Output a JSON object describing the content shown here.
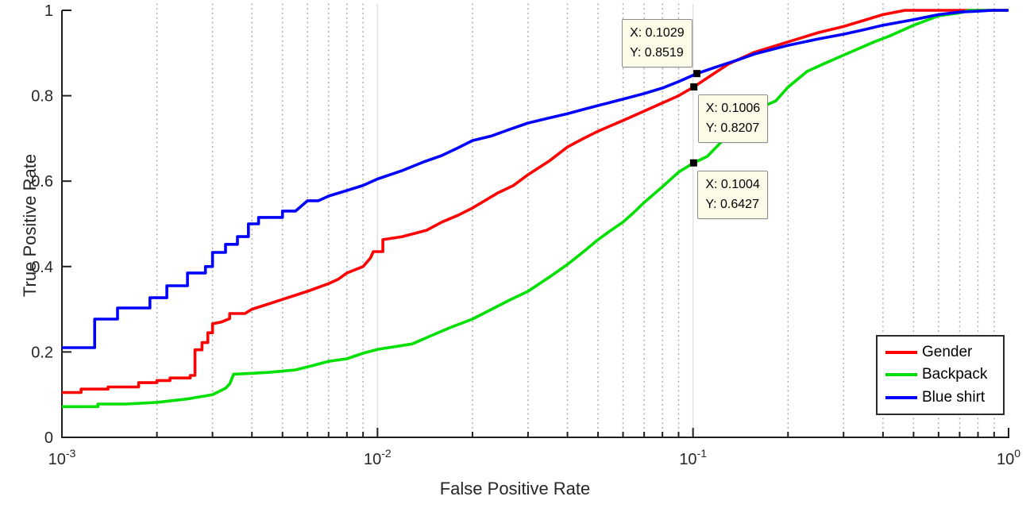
{
  "chart_data": {
    "type": "line",
    "title": "",
    "xlabel": "False Positive Rate",
    "ylabel": "True Positive Rate",
    "x_scale": "log",
    "xlim": [
      0.001,
      1
    ],
    "ylim": [
      0,
      1
    ],
    "grid": {
      "x_minor_dotted": true,
      "x_major_solid": true,
      "y_grid": false
    },
    "axis_color": "#1f1f1f",
    "tick_label_color": "#262626",
    "minor_grid_color": "#ababab",
    "major_grid_color": "#e3e3e3",
    "x_ticks": [
      {
        "value": 0.001,
        "base": "10",
        "exp": "-3"
      },
      {
        "value": 0.01,
        "base": "10",
        "exp": "-2"
      },
      {
        "value": 0.1,
        "base": "10",
        "exp": "-1"
      },
      {
        "value": 1,
        "base": "10",
        "exp": "0"
      }
    ],
    "y_ticks": [
      {
        "value": 0,
        "label": "0"
      },
      {
        "value": 0.2,
        "label": "0.2"
      },
      {
        "value": 0.4,
        "label": "0.4"
      },
      {
        "value": 0.6,
        "label": "0.6"
      },
      {
        "value": 0.8,
        "label": "0.8"
      },
      {
        "value": 1,
        "label": "1"
      }
    ],
    "legend_position": "south-east",
    "series": [
      {
        "name": "Gender",
        "color": "#ff0000",
        "points": [
          [
            0.001,
            0.105
          ],
          [
            0.00115,
            0.105
          ],
          [
            0.00115,
            0.113
          ],
          [
            0.0014,
            0.113
          ],
          [
            0.0014,
            0.118
          ],
          [
            0.00175,
            0.118
          ],
          [
            0.00175,
            0.128
          ],
          [
            0.002,
            0.128
          ],
          [
            0.002,
            0.133
          ],
          [
            0.0022,
            0.133
          ],
          [
            0.0022,
            0.139
          ],
          [
            0.00255,
            0.139
          ],
          [
            0.00255,
            0.145
          ],
          [
            0.00264,
            0.145
          ],
          [
            0.00264,
            0.205
          ],
          [
            0.00278,
            0.205
          ],
          [
            0.00278,
            0.222
          ],
          [
            0.0029,
            0.222
          ],
          [
            0.0029,
            0.245
          ],
          [
            0.003,
            0.245
          ],
          [
            0.003,
            0.266
          ],
          [
            0.0032,
            0.27
          ],
          [
            0.0034,
            0.278
          ],
          [
            0.0034,
            0.29
          ],
          [
            0.0038,
            0.29
          ],
          [
            0.004,
            0.3
          ],
          [
            0.0045,
            0.312
          ],
          [
            0.005,
            0.323
          ],
          [
            0.006,
            0.342
          ],
          [
            0.007,
            0.36
          ],
          [
            0.0075,
            0.37
          ],
          [
            0.008,
            0.385
          ],
          [
            0.009,
            0.4
          ],
          [
            0.0095,
            0.42
          ],
          [
            0.0097,
            0.435
          ],
          [
            0.0104,
            0.435
          ],
          [
            0.0104,
            0.463
          ],
          [
            0.012,
            0.47
          ],
          [
            0.0143,
            0.485
          ],
          [
            0.016,
            0.504
          ],
          [
            0.018,
            0.52
          ],
          [
            0.02,
            0.537
          ],
          [
            0.024,
            0.572
          ],
          [
            0.027,
            0.59
          ],
          [
            0.03,
            0.615
          ],
          [
            0.035,
            0.647
          ],
          [
            0.04,
            0.68
          ],
          [
            0.045,
            0.7
          ],
          [
            0.05,
            0.717
          ],
          [
            0.06,
            0.742
          ],
          [
            0.07,
            0.764
          ],
          [
            0.08,
            0.783
          ],
          [
            0.09,
            0.8
          ],
          [
            0.1006,
            0.8207
          ],
          [
            0.117,
            0.853
          ],
          [
            0.13,
            0.875
          ],
          [
            0.157,
            0.902
          ],
          [
            0.2,
            0.926
          ],
          [
            0.25,
            0.948
          ],
          [
            0.3,
            0.962
          ],
          [
            0.35,
            0.977
          ],
          [
            0.4,
            0.99
          ],
          [
            0.47,
            1.0
          ],
          [
            1.0,
            1.0
          ]
        ]
      },
      {
        "name": "Backpack",
        "color": "#00e000",
        "points": [
          [
            0.001,
            0.072
          ],
          [
            0.0013,
            0.072
          ],
          [
            0.0013,
            0.078
          ],
          [
            0.0016,
            0.078
          ],
          [
            0.002,
            0.082
          ],
          [
            0.0025,
            0.09
          ],
          [
            0.003,
            0.1
          ],
          [
            0.0033,
            0.115
          ],
          [
            0.0034,
            0.125
          ],
          [
            0.0035,
            0.148
          ],
          [
            0.004,
            0.15
          ],
          [
            0.0045,
            0.152
          ],
          [
            0.005,
            0.155
          ],
          [
            0.0055,
            0.158
          ],
          [
            0.006,
            0.165
          ],
          [
            0.007,
            0.178
          ],
          [
            0.008,
            0.184
          ],
          [
            0.009,
            0.197
          ],
          [
            0.01,
            0.206
          ],
          [
            0.0115,
            0.213
          ],
          [
            0.0129,
            0.219
          ],
          [
            0.015,
            0.24
          ],
          [
            0.017,
            0.257
          ],
          [
            0.02,
            0.277
          ],
          [
            0.023,
            0.3
          ],
          [
            0.026,
            0.32
          ],
          [
            0.03,
            0.342
          ],
          [
            0.035,
            0.375
          ],
          [
            0.04,
            0.405
          ],
          [
            0.045,
            0.435
          ],
          [
            0.05,
            0.463
          ],
          [
            0.055,
            0.485
          ],
          [
            0.06,
            0.504
          ],
          [
            0.065,
            0.527
          ],
          [
            0.07,
            0.55
          ],
          [
            0.08,
            0.587
          ],
          [
            0.09,
            0.621
          ],
          [
            0.1004,
            0.6427
          ],
          [
            0.111,
            0.658
          ],
          [
            0.13,
            0.71
          ],
          [
            0.15,
            0.76
          ],
          [
            0.183,
            0.788
          ],
          [
            0.2,
            0.82
          ],
          [
            0.23,
            0.857
          ],
          [
            0.26,
            0.875
          ],
          [
            0.3,
            0.895
          ],
          [
            0.375,
            0.926
          ],
          [
            0.42,
            0.94
          ],
          [
            0.5,
            0.965
          ],
          [
            0.6,
            0.987
          ],
          [
            0.7,
            0.994
          ],
          [
            0.75,
            1.0
          ],
          [
            1.0,
            1.0
          ]
        ]
      },
      {
        "name": "Blue shirt",
        "color": "#0000ff",
        "points": [
          [
            0.001,
            0.21
          ],
          [
            0.00127,
            0.21
          ],
          [
            0.00127,
            0.277
          ],
          [
            0.0015,
            0.277
          ],
          [
            0.0015,
            0.303
          ],
          [
            0.0019,
            0.303
          ],
          [
            0.0019,
            0.327
          ],
          [
            0.00215,
            0.327
          ],
          [
            0.00215,
            0.355
          ],
          [
            0.0025,
            0.355
          ],
          [
            0.0025,
            0.385
          ],
          [
            0.00285,
            0.385
          ],
          [
            0.00285,
            0.4
          ],
          [
            0.003,
            0.4
          ],
          [
            0.003,
            0.433
          ],
          [
            0.0033,
            0.433
          ],
          [
            0.0033,
            0.452
          ],
          [
            0.0036,
            0.452
          ],
          [
            0.0036,
            0.47
          ],
          [
            0.0039,
            0.47
          ],
          [
            0.0039,
            0.5
          ],
          [
            0.0042,
            0.5
          ],
          [
            0.0042,
            0.515
          ],
          [
            0.005,
            0.515
          ],
          [
            0.005,
            0.53
          ],
          [
            0.0055,
            0.53
          ],
          [
            0.006,
            0.554
          ],
          [
            0.0065,
            0.554
          ],
          [
            0.007,
            0.565
          ],
          [
            0.008,
            0.578
          ],
          [
            0.009,
            0.59
          ],
          [
            0.01,
            0.605
          ],
          [
            0.012,
            0.625
          ],
          [
            0.014,
            0.645
          ],
          [
            0.016,
            0.66
          ],
          [
            0.018,
            0.678
          ],
          [
            0.02,
            0.695
          ],
          [
            0.023,
            0.706
          ],
          [
            0.026,
            0.72
          ],
          [
            0.03,
            0.736
          ],
          [
            0.035,
            0.748
          ],
          [
            0.04,
            0.758
          ],
          [
            0.045,
            0.768
          ],
          [
            0.05,
            0.777
          ],
          [
            0.06,
            0.792
          ],
          [
            0.07,
            0.805
          ],
          [
            0.08,
            0.818
          ],
          [
            0.09,
            0.833
          ],
          [
            0.1029,
            0.8519
          ],
          [
            0.117,
            0.866
          ],
          [
            0.14,
            0.885
          ],
          [
            0.157,
            0.898
          ],
          [
            0.2,
            0.918
          ],
          [
            0.25,
            0.933
          ],
          [
            0.3,
            0.944
          ],
          [
            0.35,
            0.955
          ],
          [
            0.4,
            0.965
          ],
          [
            0.5,
            0.978
          ],
          [
            0.6,
            0.99
          ],
          [
            0.7,
            0.996
          ],
          [
            0.8,
            0.998
          ],
          [
            0.89,
            1.0
          ],
          [
            1.0,
            1.0
          ]
        ]
      }
    ],
    "annotations": [
      {
        "series": "Blue shirt",
        "x": 0.1029,
        "y": 0.8519,
        "x_label": "X: 0.1029",
        "y_label": "Y: 0.8519",
        "placement": "above-left",
        "marker_color": "#000000"
      },
      {
        "series": "Gender",
        "x": 0.1006,
        "y": 0.8207,
        "x_label": "X: 0.1006",
        "y_label": "Y: 0.8207",
        "placement": "below-right",
        "marker_color": "#000000"
      },
      {
        "series": "Backpack",
        "x": 0.1004,
        "y": 0.6427,
        "x_label": "X: 0.1004",
        "y_label": "Y: 0.6427",
        "placement": "below-right",
        "marker_color": "#000000"
      }
    ]
  }
}
